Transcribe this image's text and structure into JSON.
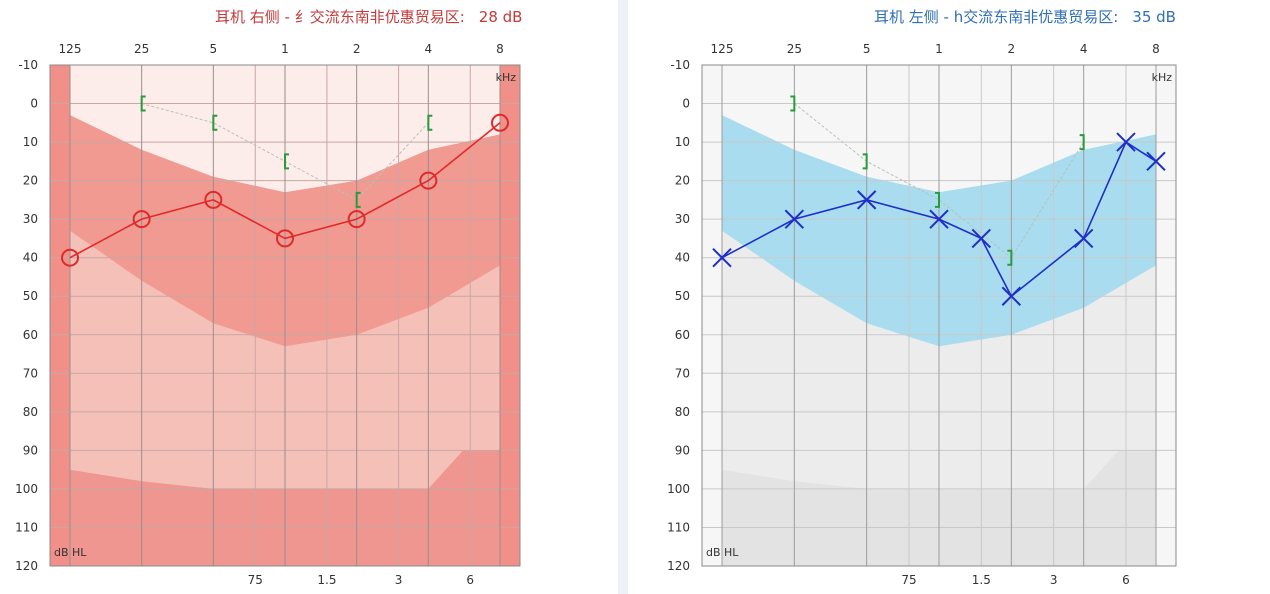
{
  "right_header": {
    "title": "耳机 右侧 - 纟",
    "overlay": "交流东南非优惠贸易区:",
    "value": "28 dB"
  },
  "left_header": {
    "title": "耳机 左侧 - h",
    "overlay": "交流东南非优惠贸易区:",
    "value": "35 dB"
  },
  "colors": {
    "right_mark": "#e02a2a",
    "left_mark": "#1d2fc8",
    "bone": "#2a9a3a",
    "right_band": "#f19a92",
    "left_band": "#a9dcee"
  },
  "chart_data": [
    {
      "type": "line",
      "title": "",
      "top_tick_labels": [
        "125",
        "25",
        "5",
        "1",
        "2",
        "4",
        "8"
      ],
      "bottom_tick_labels": [
        "75",
        "1.5",
        "3",
        "6"
      ],
      "y_tick_labels": [
        "-10",
        "0",
        "10",
        "20",
        "30",
        "40",
        "50",
        "60",
        "70",
        "80",
        "90",
        "100",
        "110",
        "120"
      ],
      "x_unit_label": "kHz",
      "y_unit_label": "dB HL",
      "xlim_khz": [
        0.125,
        8
      ],
      "ylim_db": [
        -10,
        120
      ],
      "y_inverted": true,
      "x_scale": "log2",
      "series": [
        {
          "marker": "circle",
          "x": [
            0.125,
            0.25,
            0.5,
            1,
            2,
            4,
            8
          ],
          "y": [
            40,
            30,
            25,
            35,
            30,
            20,
            5
          ]
        },
        {
          "marker": "bracket-left",
          "x": [
            0.25,
            0.5,
            1,
            2,
            4
          ],
          "y": [
            0,
            5,
            15,
            25,
            5
          ]
        }
      ]
    },
    {
      "type": "line",
      "title": "",
      "top_tick_labels": [
        "125",
        "25",
        "5",
        "1",
        "2",
        "4",
        "8"
      ],
      "bottom_tick_labels": [
        "75",
        "1.5",
        "3",
        "6"
      ],
      "y_tick_labels": [
        "-10",
        "0",
        "10",
        "20",
        "30",
        "40",
        "50",
        "60",
        "70",
        "80",
        "90",
        "100",
        "110",
        "120"
      ],
      "x_unit_label": "kHz",
      "y_unit_label": "dB HL",
      "xlim_khz": [
        0.125,
        8
      ],
      "ylim_db": [
        -10,
        120
      ],
      "y_inverted": true,
      "x_scale": "log2",
      "series": [
        {
          "marker": "cross",
          "x": [
            0.125,
            0.25,
            0.5,
            1,
            1.5,
            2,
            4,
            6,
            8
          ],
          "y": [
            40,
            30,
            25,
            30,
            35,
            50,
            35,
            10,
            15
          ]
        },
        {
          "marker": "bracket-right",
          "x": [
            0.25,
            0.5,
            1,
            2,
            4
          ],
          "y": [
            0,
            15,
            25,
            40,
            10
          ]
        }
      ]
    }
  ]
}
